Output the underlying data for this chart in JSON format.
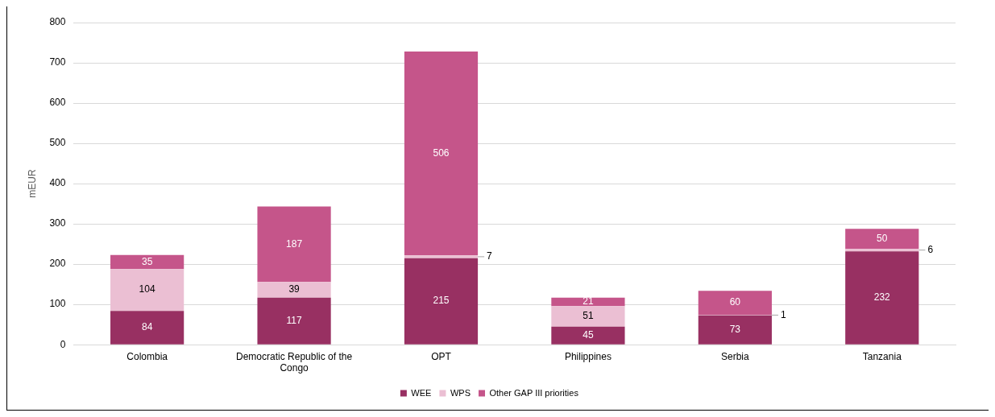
{
  "chart_data": {
    "type": "bar",
    "stacked": true,
    "ylabel": "mEUR",
    "categories": [
      "Colombia",
      "Democratic Republic of the Congo",
      "OPT",
      "Philippines",
      "Serbia",
      "Tanzania"
    ],
    "series": [
      {
        "name": "WEE",
        "color": "#983062",
        "values": [
          84,
          117,
          215,
          45,
          73,
          232
        ]
      },
      {
        "name": "WPS",
        "color": "#ebbfd3",
        "values": [
          104,
          39,
          7,
          51,
          1,
          6
        ]
      },
      {
        "name": "Other GAP III priorities",
        "color": "#c5558a",
        "values": [
          35,
          187,
          506,
          21,
          60,
          50
        ]
      }
    ],
    "ylim": [
      0,
      800
    ],
    "yticks": [
      0,
      100,
      200,
      300,
      400,
      500,
      600,
      700,
      800
    ],
    "grid": "y",
    "legend": "bottom",
    "data_labels": true
  }
}
